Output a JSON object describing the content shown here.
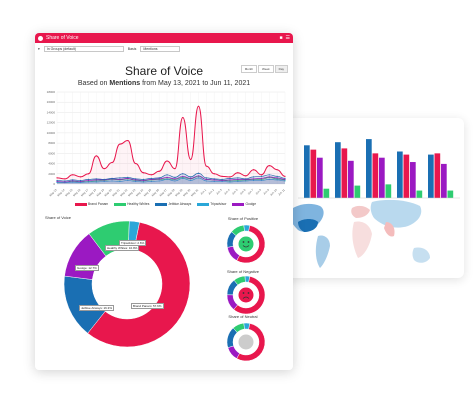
{
  "window": {
    "title": "Share of Voice",
    "filter_value": "In Groups (default)",
    "basis_label": "Basis",
    "basis_value": "Mentions"
  },
  "header": {
    "title": "Share of Voice",
    "subtitle_prefix": "Based on ",
    "subtitle_bold": "Mentions",
    "subtitle_suffix": " from May 13, 2021 to Jun 11, 2021"
  },
  "range_buttons": [
    "Month",
    "Week",
    "Day"
  ],
  "colors": {
    "brand_panam": "#e8174d",
    "healthy_whites": "#2ecc71",
    "jetblue_airways": "#1a6fb3",
    "tripadvisor": "#2aa7d8",
    "goolge": "#9b19c2",
    "accent": "#e8174d"
  },
  "chart_data": [
    {
      "type": "line",
      "title": "Share of Voice",
      "ylim": [
        0,
        18000
      ],
      "yticks": [
        "18000",
        "16000",
        "14000",
        "12000",
        "10000",
        "8000",
        "6000",
        "4000",
        "2000",
        "0"
      ],
      "categories": [
        "May 13",
        "May 14",
        "May 15",
        "May 16",
        "May 17",
        "May 18",
        "May 19",
        "May 20",
        "May 21",
        "May 22",
        "May 23",
        "May 24",
        "May 25",
        "May 26",
        "May 27",
        "May 28",
        "May 29",
        "May 30",
        "May 31",
        "Jun 1",
        "Jun 2",
        "Jun 3",
        "Jun 4",
        "Jun 5",
        "Jun 6",
        "Jun 7",
        "Jun 8",
        "Jun 9",
        "Jun 10",
        "Jun 11"
      ],
      "series": [
        {
          "name": "Brand Panam",
          "color": "#e8174d",
          "values": [
            1200,
            1000,
            1800,
            1400,
            2000,
            5500,
            3000,
            4200,
            7800,
            8500,
            4000,
            2200,
            1800,
            2500,
            4500,
            3000,
            13000,
            4800,
            15200,
            3500,
            2000,
            1500,
            1400,
            2200,
            1600,
            2800,
            1800,
            3600,
            2800,
            1500
          ]
        },
        {
          "name": "Healthy Whites",
          "color": "#2ecc71",
          "values": [
            400,
            300,
            500,
            400,
            500,
            600,
            700,
            900,
            800,
            1000,
            700,
            600,
            800,
            900,
            1000,
            900,
            1300,
            1000,
            1500,
            900,
            800,
            700,
            600,
            700,
            800,
            900,
            900,
            1300,
            1000,
            800
          ]
        },
        {
          "name": "Jetblue Airways",
          "color": "#1a6fb3",
          "values": [
            700,
            600,
            800,
            700,
            900,
            1000,
            900,
            1100,
            1200,
            1300,
            1000,
            900,
            1100,
            1200,
            1800,
            1300,
            2000,
            1400,
            2100,
            1200,
            1000,
            900,
            1100,
            1200,
            1000,
            1400,
            1500,
            1800,
            1500,
            1100
          ]
        },
        {
          "name": "Tripadvisor",
          "color": "#2aa7d8",
          "values": [
            300,
            300,
            350,
            300,
            400,
            400,
            500,
            600,
            500,
            700,
            500,
            400,
            500,
            600,
            900,
            600,
            1100,
            700,
            1200,
            600,
            500,
            500,
            400,
            500,
            600,
            700,
            700,
            900,
            800,
            600
          ]
        },
        {
          "name": "Goolge",
          "color": "#9b19c2",
          "values": [
            500,
            400,
            600,
            500,
            700,
            800,
            800,
            1000,
            900,
            1100,
            800,
            700,
            900,
            1000,
            1300,
            1000,
            1500,
            1100,
            1600,
            900,
            800,
            700,
            800,
            900,
            900,
            1000,
            1100,
            1400,
            1200,
            900
          ]
        }
      ]
    },
    {
      "type": "pie",
      "title": "Share of Voice",
      "categories": [
        "Brand Panam",
        "Jetblue Airways",
        "Goolge",
        "Healthy Whites",
        "Tripadvisor"
      ],
      "values": [
        57.6,
        16.3,
        12.7,
        10.9,
        2.6
      ],
      "colors": [
        "#e8174d",
        "#1a6fb3",
        "#9b19c2",
        "#2ecc71",
        "#2aa7d8"
      ],
      "labels": [
        "Brand Panam: 57.6%",
        "Jetblue Airways: 16.3%",
        "Goolge: 12.7%",
        "Healthy Whites: 10.9%",
        "Tripadvisor: 2.6%"
      ]
    },
    {
      "type": "pie",
      "title": "Share of Positive",
      "categories": [
        "Brand Panam",
        "Goolge",
        "Jetblue Airways",
        "Healthy Whites",
        "Tripadvisor"
      ],
      "values": [
        55,
        14,
        14,
        12,
        5
      ],
      "colors": [
        "#e8174d",
        "#9b19c2",
        "#1a6fb3",
        "#2ecc71",
        "#2aa7d8"
      ]
    },
    {
      "type": "pie",
      "title": "Share of Negative",
      "categories": [
        "Brand Panam",
        "Goolge",
        "Jetblue Airways",
        "Healthy Whites",
        "Tripadvisor"
      ],
      "values": [
        58,
        14,
        14,
        10,
        4
      ],
      "colors": [
        "#e8174d",
        "#9b19c2",
        "#1a6fb3",
        "#2ecc71",
        "#2aa7d8"
      ]
    },
    {
      "type": "pie",
      "title": "Share of Neutral",
      "categories": [
        "Brand Panam",
        "Goolge",
        "Jetblue Airways",
        "Healthy Whites",
        "Tripadvisor"
      ],
      "values": [
        55,
        12,
        18,
        10,
        5
      ],
      "colors": [
        "#e8174d",
        "#9b19c2",
        "#1a6fb3",
        "#2ecc71",
        "#2aa7d8"
      ]
    },
    {
      "type": "bar",
      "categories": [
        "",
        "",
        "",
        "",
        ""
      ],
      "series": [
        {
          "name": "",
          "color": "#1a6fb3",
          "values": [
            85,
            90,
            95,
            75,
            70
          ]
        },
        {
          "name": "",
          "color": "#e8174d",
          "values": [
            78,
            80,
            72,
            70,
            72
          ]
        },
        {
          "name": "",
          "color": "#9b19c2",
          "values": [
            65,
            60,
            65,
            58,
            55
          ]
        },
        {
          "name": "",
          "color": "#2ecc71",
          "values": [
            15,
            20,
            22,
            12,
            12
          ]
        }
      ],
      "ylim": [
        0,
        100
      ]
    }
  ],
  "labels": {
    "share_of_voice": "Share of Voice",
    "share_of_positive": "Share of Positive",
    "share_of_negative": "Share of Negative",
    "share_of_neutral": "Share of Neutral"
  }
}
